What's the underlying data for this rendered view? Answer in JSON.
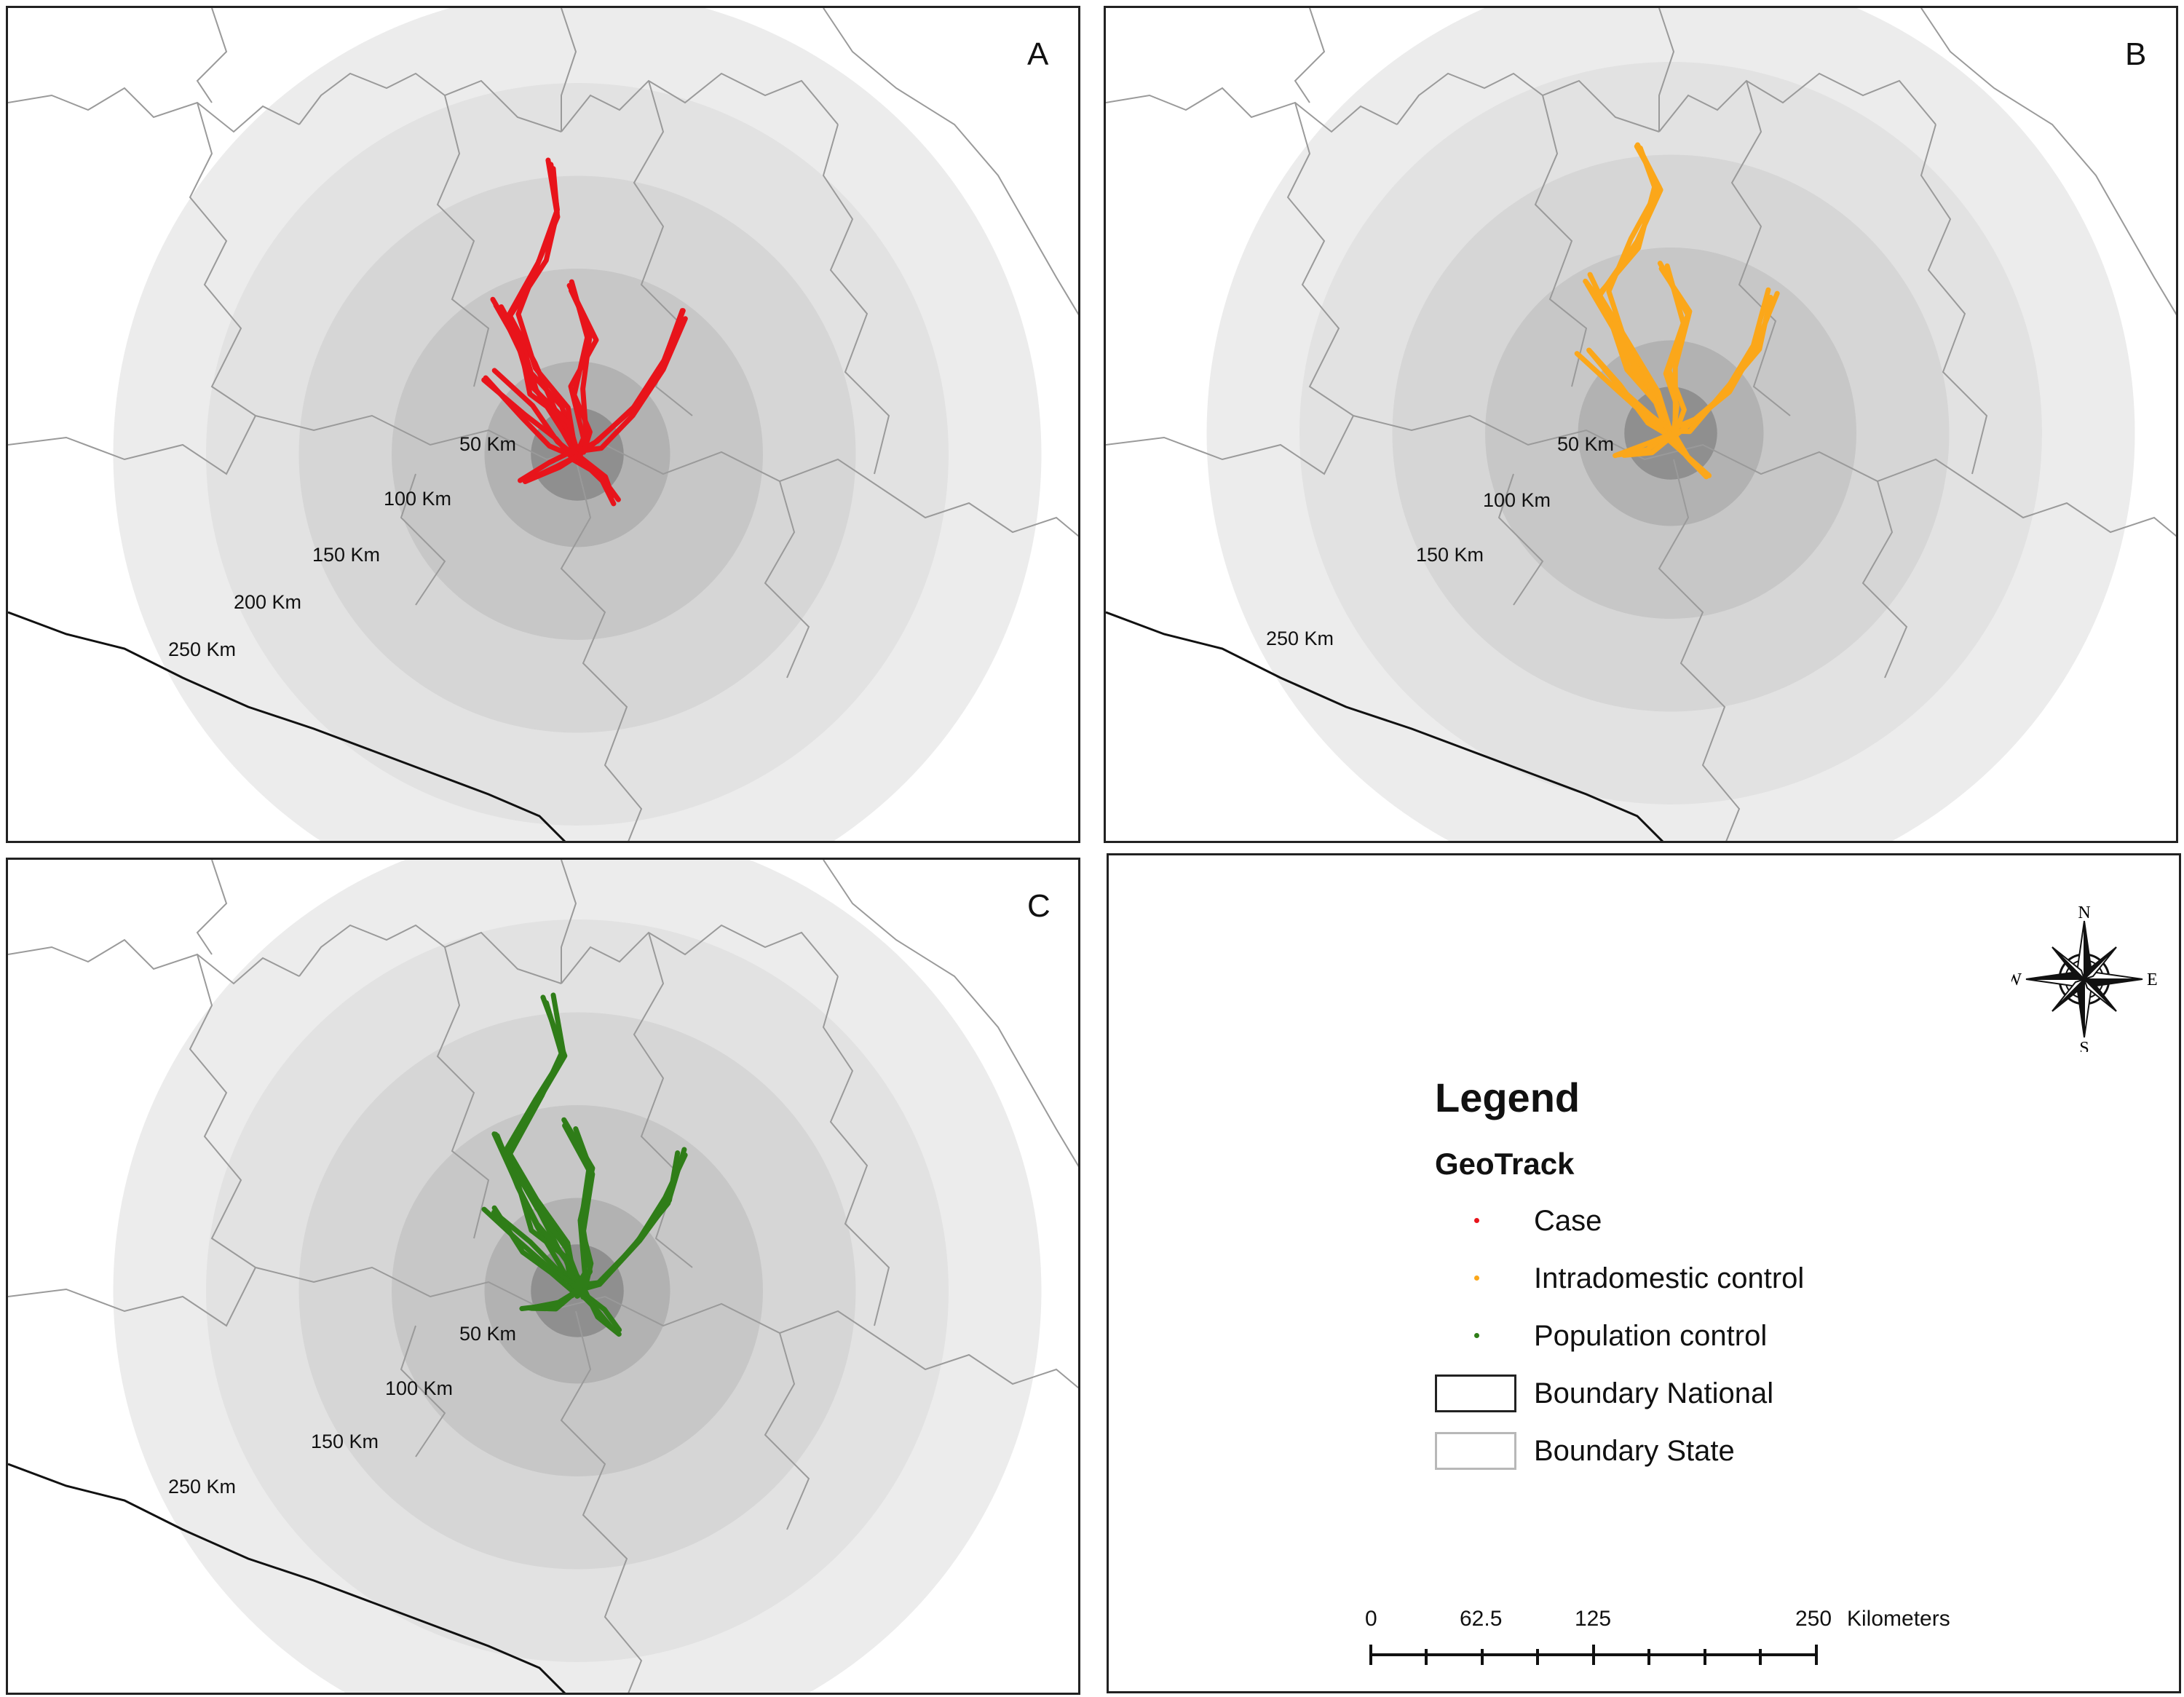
{
  "panels": [
    {
      "letter": "A",
      "track_color": "#e8141b",
      "rings": [
        {
          "km": 250,
          "label": "250 Km"
        },
        {
          "km": 200,
          "label": "200 Km"
        },
        {
          "km": 150,
          "label": "150 Km"
        },
        {
          "km": 100,
          "label": "100 Km"
        },
        {
          "km": 50,
          "label": "50 Km"
        },
        {
          "km": 25,
          "label": ""
        }
      ]
    },
    {
      "letter": "B",
      "track_color": "#fba71a",
      "rings": [
        {
          "km": 250,
          "label": "250 Km"
        },
        {
          "km": 200,
          "label": ""
        },
        {
          "km": 150,
          "label": "150 Km"
        },
        {
          "km": 100,
          "label": "100 Km"
        },
        {
          "km": 50,
          "label": "50 Km"
        },
        {
          "km": 25,
          "label": ""
        }
      ]
    },
    {
      "letter": "C",
      "track_color": "#2f7d18",
      "rings": [
        {
          "km": 250,
          "label": "250 Km"
        },
        {
          "km": 200,
          "label": ""
        },
        {
          "km": 150,
          "label": "150 Km"
        },
        {
          "km": 100,
          "label": "100 Km"
        },
        {
          "km": 50,
          "label": "50 Km"
        },
        {
          "km": 25,
          "label": ""
        }
      ]
    }
  ],
  "ring_fill_colors": [
    "#ececec",
    "#e2e2e2",
    "#d6d6d6",
    "#c7c7c7",
    "#b2b2b2",
    "#8f8f8f"
  ],
  "legend": {
    "title": "Legend",
    "group_title": "GeoTrack",
    "items": [
      {
        "label": "Case",
        "symbol": "dot",
        "color": "#e8141b"
      },
      {
        "label": "Intradomestic control",
        "symbol": "dot",
        "color": "#fba71a"
      },
      {
        "label": "Population control",
        "symbol": "dot",
        "color": "#2f7d18"
      },
      {
        "label": "Boundary National",
        "symbol": "box",
        "color": "#222222"
      },
      {
        "label": "Boundary State",
        "symbol": "box",
        "color": "#b8b8b8"
      }
    ]
  },
  "north_arrow": {
    "icon": "compass-rose-icon",
    "n": "N",
    "s": "S",
    "e": "E",
    "w": "W"
  },
  "scale_bar": {
    "ticks": [
      "0",
      "62.5",
      "125",
      "250"
    ],
    "unit": "Kilometers"
  }
}
